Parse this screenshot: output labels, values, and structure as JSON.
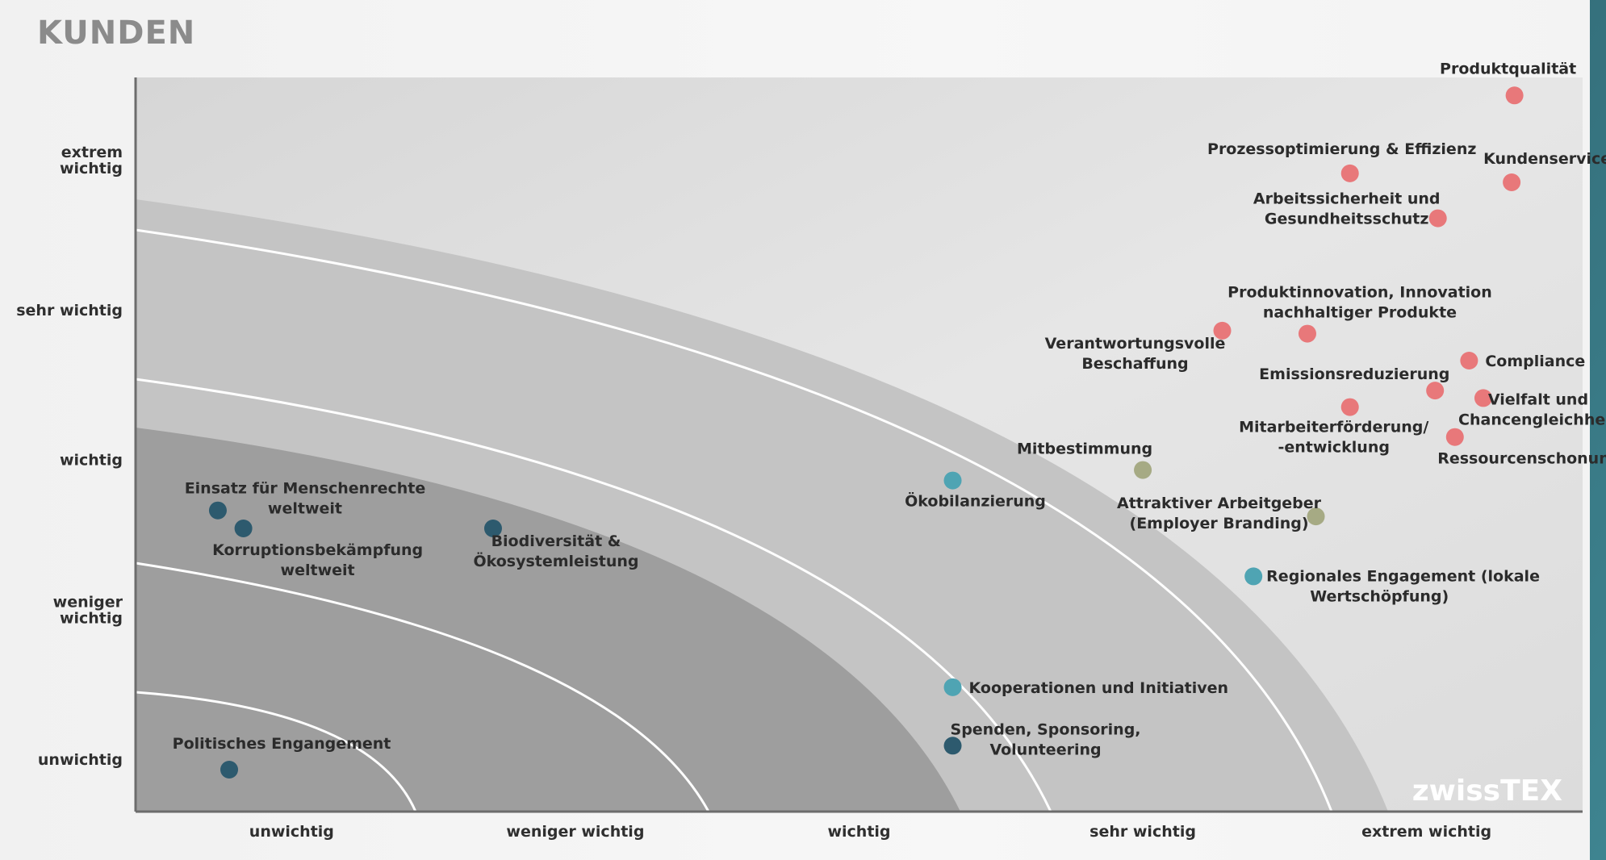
{
  "page": {
    "title": "KUNDEN",
    "brand": "zwissTEX"
  },
  "chart_data": {
    "type": "scatter",
    "title": "KUNDEN",
    "xlabel": "",
    "ylabel": "",
    "x_ticks": [
      "unwichtig",
      "weniger wichtig",
      "wichtig",
      "sehr wichtig",
      "extrem wichtig"
    ],
    "y_ticks": [
      "unwichtig",
      "weniger wichtig",
      "wichtig",
      "sehr wichtig",
      "extrem wichtig"
    ],
    "xlim": [
      0.45,
      5.55
    ],
    "ylim": [
      0.65,
      5.55
    ],
    "colors": {
      "red": "#e8787a",
      "olive": "#a6aa84",
      "teal": "#4fa4b3",
      "navy": "#2d5a6e"
    },
    "points": [
      {
        "label": "Produktqualität",
        "lines": [
          "Produktqualität"
        ],
        "x": 5.31,
        "y": 5.43,
        "color": "red"
      },
      {
        "label": "Prozessoptimierung & Effizienz",
        "lines": [
          "Prozessoptimierung & Effizienz"
        ],
        "x": 4.73,
        "y": 4.91,
        "color": "red"
      },
      {
        "label": "Kundenservice",
        "lines": [
          "Kundenservice"
        ],
        "x": 5.3,
        "y": 4.85,
        "color": "red"
      },
      {
        "label": "Arbeitssicherheit und Gesundheitsschutz",
        "lines": [
          "Arbeitssicherheit und",
          "Gesundheitsschutz"
        ],
        "x": 5.04,
        "y": 4.61,
        "color": "red"
      },
      {
        "label": "Produktinnovation, Innovation nachhaltiger Produkte",
        "lines": [
          "Produktinnovation, Innovation",
          "nachhaltiger Produkte"
        ],
        "x": 4.58,
        "y": 3.84,
        "color": "red"
      },
      {
        "label": "Verantwortungsvolle Beschaffung",
        "lines": [
          "Verantwortungsvolle",
          "Beschaffung"
        ],
        "x": 4.28,
        "y": 3.86,
        "color": "red"
      },
      {
        "label": "Compliance",
        "lines": [
          "Compliance"
        ],
        "x": 5.15,
        "y": 3.66,
        "color": "red"
      },
      {
        "label": "Emissionsreduzierung",
        "lines": [
          "Emissionsreduzierung"
        ],
        "x": 5.03,
        "y": 3.46,
        "color": "red"
      },
      {
        "label": "Vielfalt und Chancengleichheit",
        "lines": [
          "Vielfalt und",
          "Chancengleichheit"
        ],
        "x": 5.2,
        "y": 3.41,
        "color": "red"
      },
      {
        "label": "Mitarbeiterförderung/ -entwicklung",
        "lines": [
          "Mitarbeiterförderung/",
          "-entwicklung"
        ],
        "x": 4.73,
        "y": 3.35,
        "color": "red"
      },
      {
        "label": "Ressourcenschonung",
        "lines": [
          "Ressourcenschonung"
        ],
        "x": 5.1,
        "y": 3.15,
        "color": "red"
      },
      {
        "label": "Mitbestimmung",
        "lines": [
          "Mitbestimmung"
        ],
        "x": 4.0,
        "y": 2.93,
        "color": "olive"
      },
      {
        "label": "Attraktiver Arbeitgeber (Employer Branding)",
        "lines": [
          "Attraktiver Arbeitgeber",
          "(Employer Branding)"
        ],
        "x": 4.61,
        "y": 2.62,
        "color": "olive"
      },
      {
        "label": "Ökobilanzierung",
        "lines": [
          "Ökobilanzierung"
        ],
        "x": 3.33,
        "y": 2.86,
        "color": "teal"
      },
      {
        "label": "Regionales Engagement (lokale Wertschöpfung)",
        "lines": [
          "Regionales Engagement (lokale",
          "Wertschöpfung)"
        ],
        "x": 4.39,
        "y": 2.22,
        "color": "teal"
      },
      {
        "label": "Kooperationen und Initiativen",
        "lines": [
          "Kooperationen und Initiativen"
        ],
        "x": 3.33,
        "y": 1.48,
        "color": "teal"
      },
      {
        "label": "Spenden, Sponsoring, Volunteering",
        "lines": [
          "Spenden, Sponsoring,",
          "Volunteering"
        ],
        "x": 3.33,
        "y": 1.09,
        "color": "navy"
      },
      {
        "label": "Einsatz für Menschenrechte weltweit",
        "lines": [
          "Einsatz für Menschenrechte",
          "weltweit"
        ],
        "x": 0.74,
        "y": 2.66,
        "color": "navy"
      },
      {
        "label": "Korruptionsbekämpfung weltweit",
        "lines": [
          "Korruptionsbekämpfung",
          "weltweit"
        ],
        "x": 0.83,
        "y": 2.54,
        "color": "navy"
      },
      {
        "label": "Biodiversität & Ökosystemleistung",
        "lines": [
          "Biodiversität &",
          "Ökosystemleistung"
        ],
        "x": 1.71,
        "y": 2.54,
        "color": "navy"
      },
      {
        "label": "Politisches Engangement",
        "lines": [
          "Politisches Engangement"
        ],
        "x": 0.78,
        "y": 0.93,
        "color": "navy"
      }
    ]
  }
}
